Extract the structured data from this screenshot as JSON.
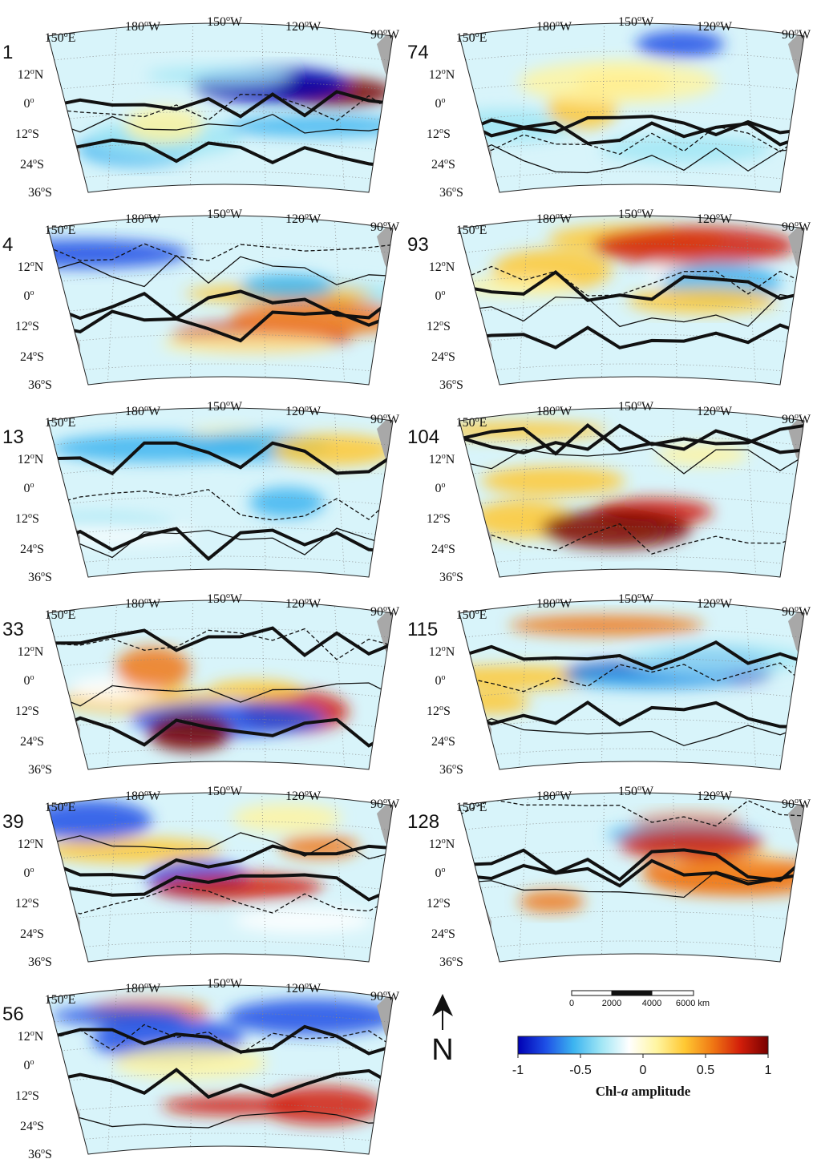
{
  "panels": [
    {
      "id": "1",
      "label": "1"
    },
    {
      "id": "74",
      "label": "74"
    },
    {
      "id": "4",
      "label": "4"
    },
    {
      "id": "93",
      "label": "93"
    },
    {
      "id": "13",
      "label": "13"
    },
    {
      "id": "104",
      "label": "104"
    },
    {
      "id": "33",
      "label": "33"
    },
    {
      "id": "115",
      "label": "115"
    },
    {
      "id": "39",
      "label": "39"
    },
    {
      "id": "128",
      "label": "128"
    },
    {
      "id": "56",
      "label": "56"
    }
  ],
  "lon_labels": [
    {
      "deg": "150",
      "dir": "E"
    },
    {
      "deg": "180",
      "dir": "W"
    },
    {
      "deg": "150",
      "dir": "W"
    },
    {
      "deg": "120",
      "dir": "W"
    },
    {
      "deg": "90",
      "dir": "W"
    }
  ],
  "lat_labels": [
    {
      "deg": "12",
      "dir": "N"
    },
    {
      "deg": "0",
      "dir": ""
    },
    {
      "deg": "12",
      "dir": "S"
    },
    {
      "deg": "24",
      "dir": "S"
    },
    {
      "deg": "36",
      "dir": "S"
    }
  ],
  "degree_symbol": "o",
  "north_arrow": {
    "label": "N"
  },
  "scale_bar": {
    "ticks": [
      "0",
      "2000",
      "4000",
      "6000 km"
    ]
  },
  "colorbar": {
    "ticks": [
      "-1",
      "-0.5",
      "0",
      "0.5",
      "1"
    ],
    "title_prefix": "Chl-",
    "title_italic": "a",
    "title_suffix": " amplitude",
    "colors": [
      "#0000b4",
      "#1e50e6",
      "#3cb4f0",
      "#a0e6f5",
      "#ffffff",
      "#fff5a0",
      "#ffc832",
      "#f07814",
      "#d21e0a",
      "#780000"
    ]
  },
  "palette": {
    "land": "#a8a8a8",
    "frame": "#222222",
    "grid": "#888888"
  }
}
